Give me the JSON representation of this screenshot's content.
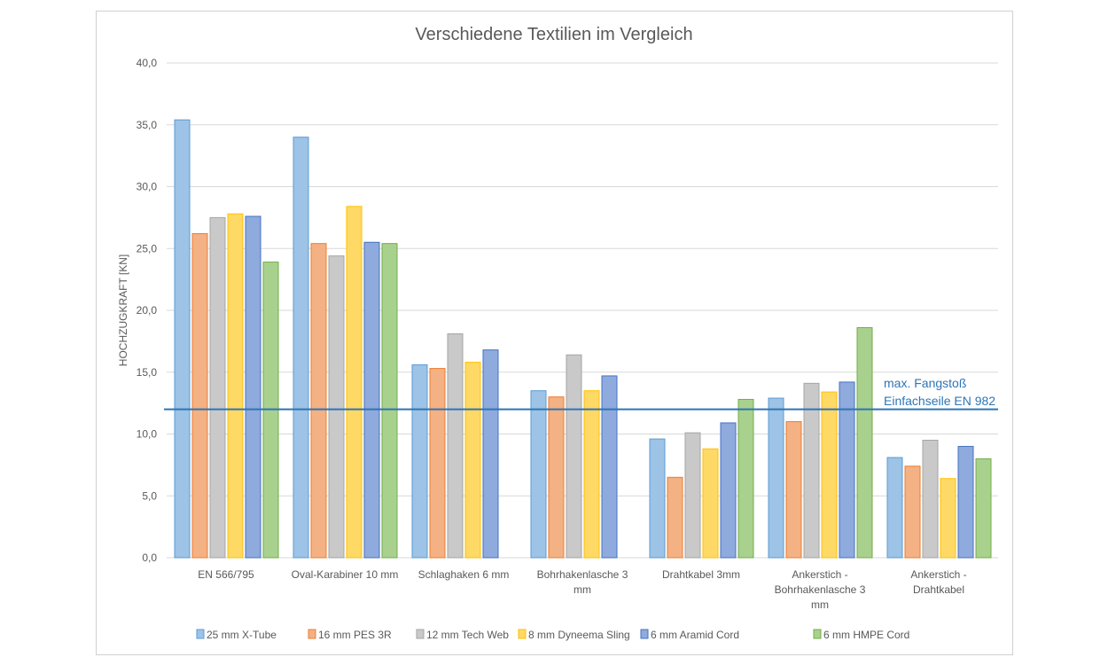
{
  "chart_data": {
    "type": "bar",
    "title": "Verschiedene Textilien im Vergleich",
    "xlabel": "",
    "ylabel": "HOCHZUGKRAFT [KN]",
    "ylim": [
      0,
      40
    ],
    "yticks": [
      "0,0",
      "5,0",
      "10,0",
      "15,0",
      "20,0",
      "25,0",
      "30,0",
      "35,0",
      "40,0"
    ],
    "grid": true,
    "legend_position": "bottom",
    "categories": [
      [
        "EN 566/795"
      ],
      [
        "Oval-Karabiner 10 mm"
      ],
      [
        "Schlaghaken 6 mm"
      ],
      [
        "Bohrhakenlasche 3",
        "mm"
      ],
      [
        "Drahtkabel 3mm"
      ],
      [
        "Ankerstich -",
        "Bohrhakenlasche 3",
        "mm"
      ],
      [
        "Ankerstich -",
        "Drahtkabel"
      ]
    ],
    "series": [
      {
        "name": "25 mm X-Tube",
        "color": "#9dc3e6",
        "edge": "#5b9bd5",
        "values": [
          35.4,
          34.0,
          15.6,
          13.5,
          9.6,
          12.9,
          8.1
        ]
      },
      {
        "name": "16 mm PES 3R",
        "color": "#f4b183",
        "edge": "#ed7d31",
        "values": [
          26.2,
          25.4,
          15.3,
          13.0,
          6.5,
          11.0,
          7.4
        ]
      },
      {
        "name": "12 mm Tech Web",
        "color": "#c9c9c9",
        "edge": "#a5a5a5",
        "values": [
          27.5,
          24.4,
          18.1,
          16.4,
          10.1,
          14.1,
          9.5
        ]
      },
      {
        "name": "8 mm Dyneema Sling",
        "color": "#ffd966",
        "edge": "#ffc000",
        "values": [
          27.8,
          28.4,
          15.8,
          13.5,
          8.8,
          13.4,
          6.4
        ]
      },
      {
        "name": "6 mm Aramid Cord",
        "color": "#8faadc",
        "edge": "#4472c4",
        "values": [
          27.6,
          25.5,
          16.8,
          14.7,
          10.9,
          14.2,
          9.0
        ]
      },
      {
        "name": "6 mm HMPE Cord",
        "color": "#a9d18e",
        "edge": "#70ad47",
        "values": [
          23.9,
          25.4,
          null,
          null,
          12.8,
          18.6,
          8.0
        ]
      }
    ],
    "reference_line": {
      "value": 12.0,
      "color": "#2e75b6",
      "label": [
        "max. Fangstoß",
        "Einfachseile EN 982"
      ]
    }
  }
}
